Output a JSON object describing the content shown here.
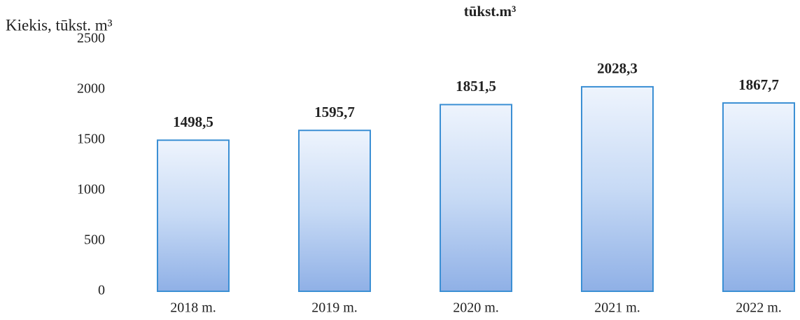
{
  "chart_data": {
    "type": "bar",
    "title": "tūkst.m³",
    "y_label": "Kiekis, tūkst. m³",
    "categories": [
      "2018 m.",
      "2019 m.",
      "2020 m.",
      "2021 m.",
      "2022 m."
    ],
    "values": [
      1498.5,
      1595.7,
      1851.5,
      2028.3,
      1867.7
    ],
    "value_labels": [
      "1498,5",
      "1595,7",
      "1851,5",
      "2028,3",
      "1867,7"
    ],
    "color": "#3b8fd4",
    "ylim": [
      0,
      2500
    ],
    "yticks": [
      0,
      500,
      1000,
      1500,
      2000,
      2500
    ]
  }
}
